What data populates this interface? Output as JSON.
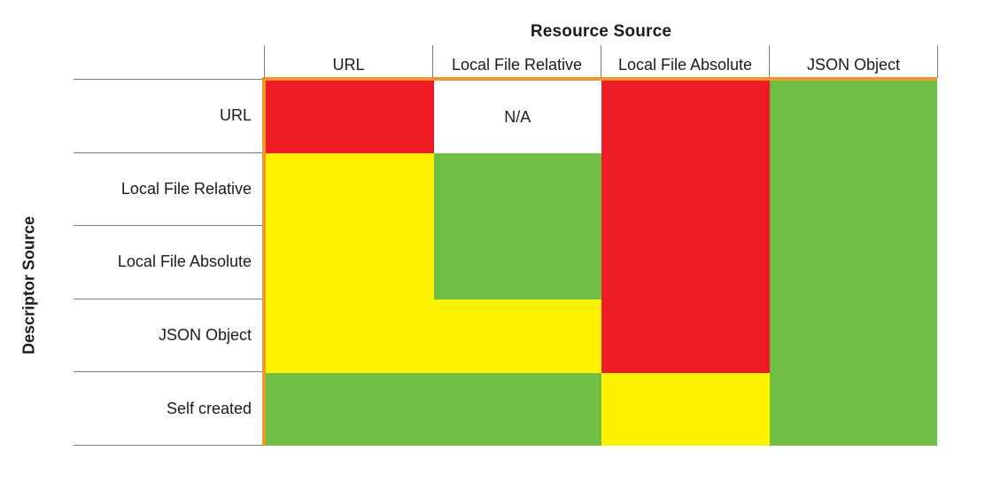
{
  "figure": {
    "title": "Resource Source",
    "y_axis_label": "Descriptor Source",
    "na_label": "N/A"
  },
  "matrix": {
    "columns": [
      "URL",
      "Local File Relative",
      "Local File Absolute",
      "JSON Object"
    ],
    "rows": [
      "URL",
      "Local File Relative",
      "Local File Absolute",
      "JSON Object",
      "Self created"
    ],
    "cells": [
      [
        "red",
        "na",
        "red",
        "green"
      ],
      [
        "yellow",
        "green",
        "red",
        "green"
      ],
      [
        "yellow",
        "green",
        "red",
        "green"
      ],
      [
        "yellow",
        "yellow",
        "red",
        "green"
      ],
      [
        "green",
        "green",
        "yellow",
        "green"
      ]
    ]
  },
  "colors": {
    "red": "#ED1C24",
    "yellow": "#FFF200",
    "green": "#6FBF44",
    "na": "#FFFFFF",
    "border_accent": "#F0962D",
    "grid_line": "#7A7A7A",
    "text": "#1B1B1B"
  },
  "chart_data": {
    "type": "heatmap",
    "title": "Resource Source",
    "xlabel": "Resource Source",
    "ylabel": "Descriptor Source",
    "x_categories": [
      "URL",
      "Local File Relative",
      "Local File Absolute",
      "JSON Object"
    ],
    "y_categories": [
      "URL",
      "Local File Relative",
      "Local File Absolute",
      "JSON Object",
      "Self created"
    ],
    "values": [
      [
        "red",
        "N/A",
        "red",
        "green"
      ],
      [
        "yellow",
        "green",
        "red",
        "green"
      ],
      [
        "yellow",
        "green",
        "red",
        "green"
      ],
      [
        "yellow",
        "yellow",
        "red",
        "green"
      ],
      [
        "green",
        "green",
        "yellow",
        "green"
      ]
    ],
    "cell_text": [
      [
        "",
        "N/A",
        "",
        ""
      ],
      [
        "",
        "",
        "",
        ""
      ],
      [
        "",
        "",
        "",
        ""
      ],
      [
        "",
        "",
        "",
        ""
      ],
      [
        "",
        "",
        "",
        ""
      ]
    ],
    "legend": "none",
    "grid": "gray separator lines on row-label column and column-header ticks only; colored cells contiguous",
    "accent_border": "orange line along top and left edge of colored matrix"
  }
}
